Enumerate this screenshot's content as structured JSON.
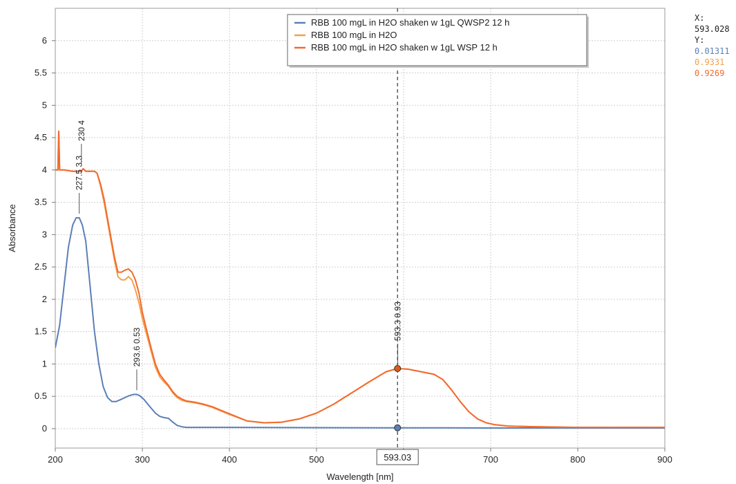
{
  "chart_data": {
    "type": "line",
    "xlabel": "Wavelength [nm]",
    "ylabel": "Absorbance",
    "xlim": [
      200,
      900
    ],
    "ylim": [
      -0.3,
      6.5
    ],
    "x_ticks": [
      "200",
      "300",
      "400",
      "500",
      "600",
      "700",
      "800",
      "900"
    ],
    "y_ticks": [
      "0",
      "0.5",
      "1",
      "1.5",
      "2",
      "2.5",
      "3",
      "3.5",
      "4",
      "4.5",
      "5",
      "5.5",
      "6"
    ],
    "grid": true,
    "legend_position": "top-center",
    "series": [
      {
        "name": "RBB 100 mgL in H2O shaken w 1gL QWSP2 12 h",
        "color": "#5b7fb6",
        "x": [
          200,
          205,
          210,
          215,
          220,
          224,
          227.5,
          231,
          235,
          240,
          245,
          250,
          255,
          260,
          265,
          270,
          275,
          280,
          285,
          290,
          293.6,
          297,
          302,
          308,
          315,
          320,
          325,
          330,
          335,
          340,
          345,
          350,
          400,
          500,
          593,
          650,
          700,
          800,
          900
        ],
        "y": [
          1.25,
          1.6,
          2.2,
          2.8,
          3.15,
          3.26,
          3.26,
          3.15,
          2.9,
          2.2,
          1.5,
          1.0,
          0.65,
          0.48,
          0.42,
          0.42,
          0.45,
          0.48,
          0.51,
          0.53,
          0.53,
          0.51,
          0.45,
          0.35,
          0.24,
          0.19,
          0.17,
          0.16,
          0.1,
          0.05,
          0.03,
          0.02,
          0.02,
          0.015,
          0.013,
          0.012,
          0.01,
          0.01,
          0.01
        ]
      },
      {
        "name": "RBB 100 mgL in H2O",
        "color": "#f5a04a",
        "x": [
          200,
          203,
          204,
          205,
          210,
          220,
          230,
          232,
          235,
          245,
          248,
          252,
          256,
          260,
          264,
          268,
          272,
          276,
          280,
          284,
          288,
          292,
          296,
          300,
          305,
          310,
          315,
          320,
          325,
          330,
          335,
          340,
          345,
          350,
          360,
          370,
          380,
          400,
          420,
          440,
          460,
          480,
          500,
          520,
          540,
          560,
          580,
          593,
          605,
          620,
          635,
          645,
          655,
          665,
          675,
          685,
          695,
          705,
          720,
          750,
          800,
          900
        ],
        "y": [
          4.0,
          4.0,
          4.6,
          4.0,
          4.0,
          3.98,
          3.98,
          4.02,
          3.98,
          3.98,
          3.95,
          3.75,
          3.5,
          3.2,
          2.9,
          2.6,
          2.35,
          2.3,
          2.3,
          2.35,
          2.3,
          2.15,
          1.95,
          1.7,
          1.45,
          1.2,
          0.95,
          0.8,
          0.72,
          0.65,
          0.55,
          0.48,
          0.44,
          0.42,
          0.4,
          0.37,
          0.33,
          0.22,
          0.12,
          0.09,
          0.1,
          0.15,
          0.24,
          0.38,
          0.55,
          0.72,
          0.88,
          0.93,
          0.92,
          0.88,
          0.84,
          0.76,
          0.6,
          0.42,
          0.26,
          0.15,
          0.09,
          0.06,
          0.04,
          0.03,
          0.02,
          0.02
        ]
      },
      {
        "name": "RBB 100 mgL in H2O shaken w 1gL WSP 12 h",
        "color": "#f26a2e",
        "x": [
          200,
          203,
          204,
          205,
          210,
          220,
          230,
          232,
          235,
          245,
          248,
          252,
          256,
          260,
          264,
          268,
          272,
          276,
          280,
          284,
          288,
          292,
          296,
          300,
          305,
          310,
          315,
          320,
          325,
          330,
          335,
          340,
          345,
          350,
          360,
          370,
          380,
          400,
          420,
          440,
          460,
          480,
          500,
          520,
          540,
          560,
          580,
          593,
          605,
          620,
          635,
          645,
          655,
          665,
          675,
          685,
          695,
          705,
          720,
          750,
          800,
          900
        ],
        "y": [
          4.0,
          4.0,
          4.6,
          4.0,
          4.0,
          3.98,
          3.98,
          4.02,
          3.98,
          3.98,
          3.95,
          3.78,
          3.55,
          3.25,
          2.95,
          2.65,
          2.42,
          2.42,
          2.45,
          2.47,
          2.42,
          2.3,
          2.1,
          1.8,
          1.52,
          1.25,
          1.0,
          0.84,
          0.75,
          0.67,
          0.57,
          0.5,
          0.46,
          0.43,
          0.41,
          0.38,
          0.34,
          0.23,
          0.12,
          0.09,
          0.1,
          0.15,
          0.24,
          0.38,
          0.55,
          0.72,
          0.88,
          0.93,
          0.92,
          0.88,
          0.84,
          0.76,
          0.6,
          0.42,
          0.26,
          0.15,
          0.09,
          0.06,
          0.04,
          0.03,
          0.02,
          0.02
        ]
      }
    ],
    "peak_labels": [
      {
        "text": "227.5 3.3",
        "x": 227.5,
        "y": 3.26
      },
      {
        "text": "230 4",
        "x": 230,
        "y": 4.02
      },
      {
        "text": "293.6 0.53",
        "x": 293.6,
        "y": 0.53
      },
      {
        "text": "593.3 0.93",
        "x": 593.3,
        "y": 0.93
      }
    ],
    "cursor": {
      "x": 593.028,
      "box_label": "593.03",
      "points": [
        {
          "y": 0.01311,
          "color": "#5b7fb6"
        },
        {
          "y": 0.93,
          "color": "#e05a1a"
        }
      ]
    }
  },
  "readout": {
    "x_label": "X:",
    "x_value": "593.028",
    "y_label": "Y:",
    "y_values": [
      {
        "text": "0.01311",
        "color": "#5b7fb6"
      },
      {
        "text": "0.9331",
        "color": "#f5a04a"
      },
      {
        "text": "0.9269",
        "color": "#f26a2e"
      }
    ]
  }
}
